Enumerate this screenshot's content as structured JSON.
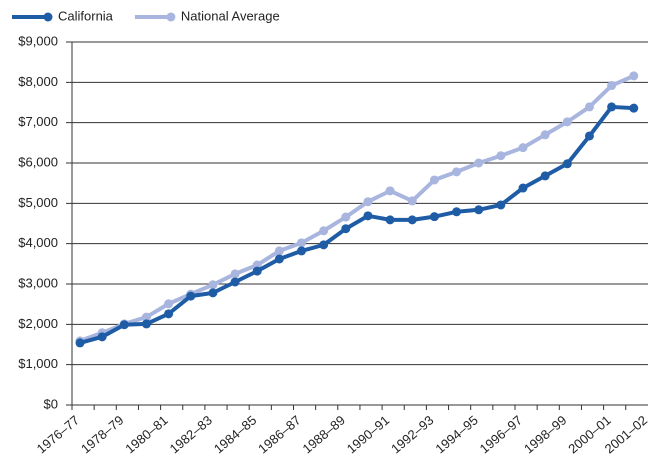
{
  "chart_data": {
    "type": "line",
    "categories": [
      "1976–77",
      null,
      "1978–79",
      null,
      "1980–81",
      null,
      "1982–83",
      null,
      "1984–85",
      null,
      "1986–87",
      null,
      "1988–89",
      null,
      "1990–91",
      null,
      "1992–93",
      null,
      "1994–95",
      null,
      "1996–97",
      null,
      "1998–99",
      null,
      "2000–01",
      "2001–02"
    ],
    "series": [
      {
        "name": "California",
        "color": "#1f5ca6",
        "values": [
          1540,
          1690,
          1990,
          2010,
          2260,
          2700,
          2780,
          3050,
          3320,
          3620,
          3820,
          3970,
          4370,
          4690,
          4590,
          4590,
          4670,
          4790,
          4840,
          4960,
          5380,
          5680,
          5980,
          6670,
          7390,
          7360
        ]
      },
      {
        "name": "National Average",
        "color": "#a8b5de",
        "values": [
          1590,
          1790,
          2010,
          2180,
          2510,
          2750,
          2980,
          3250,
          3470,
          3820,
          4020,
          4320,
          4660,
          5040,
          5310,
          5060,
          5580,
          5780,
          6000,
          6180,
          6380,
          6700,
          7020,
          7390,
          7920,
          8160
        ]
      }
    ],
    "ylim": [
      0,
      9000
    ],
    "yticks": [
      {
        "value": 0,
        "label": "$0"
      },
      {
        "value": 1000,
        "label": "$1,000"
      },
      {
        "value": 2000,
        "label": "$2,000"
      },
      {
        "value": 3000,
        "label": "$3,000"
      },
      {
        "value": 4000,
        "label": "$4,000"
      },
      {
        "value": 5000,
        "label": "$5,000"
      },
      {
        "value": 6000,
        "label": "$6,000"
      },
      {
        "value": 7000,
        "label": "$7,000"
      },
      {
        "value": 8000,
        "label": "$8,000"
      },
      {
        "value": 9000,
        "label": "$9,000"
      }
    ],
    "grid": true,
    "legend": "top-left"
  }
}
